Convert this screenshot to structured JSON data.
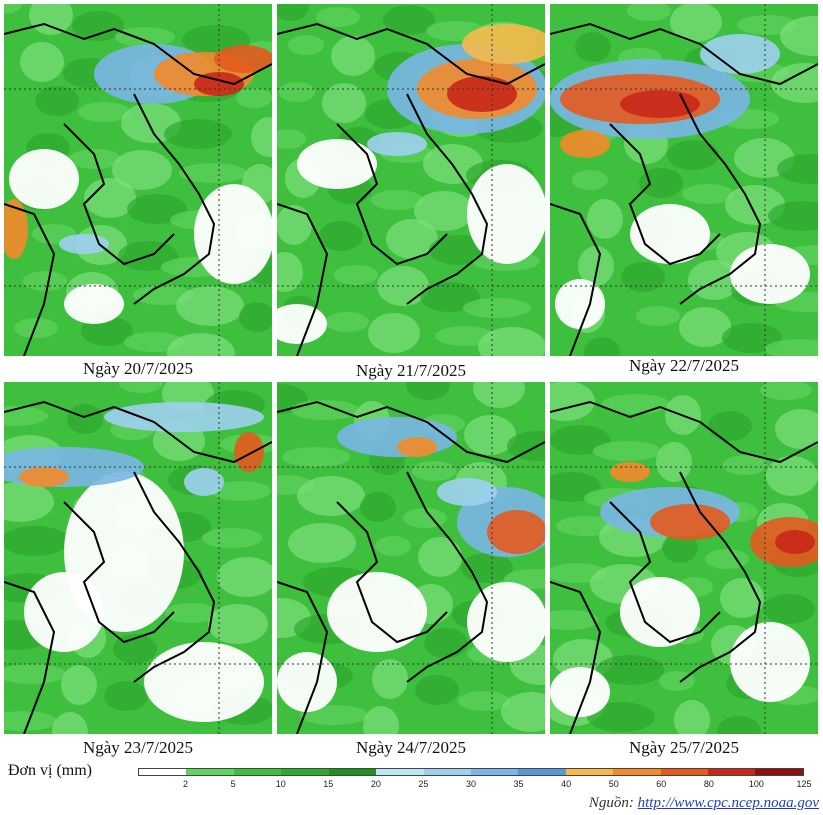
{
  "panels": [
    {
      "date_label": "Ngày 20/7/2025"
    },
    {
      "date_label": "Ngày 21/7/2025"
    },
    {
      "date_label": "Ngày 22/7/2025"
    },
    {
      "date_label": "Ngày 23/7/2025"
    },
    {
      "date_label": "Ngày 24/7/2025"
    },
    {
      "date_label": "Ngày 25/7/2025"
    }
  ],
  "legend": {
    "unit_label": "Đơn vị (mm)",
    "ticks": [
      "2",
      "5",
      "10",
      "15",
      "20",
      "25",
      "30",
      "35",
      "40",
      "50",
      "60",
      "80",
      "100",
      "125"
    ],
    "colors": [
      "#ffffff",
      "#5fd35f",
      "#3ebf3e",
      "#2ea82e",
      "#1f8f1f",
      "#bfe6f5",
      "#9fd0ef",
      "#7ab6e6",
      "#5a97d8",
      "#f4b94a",
      "#f28a2a",
      "#e45a1f",
      "#c8281a",
      "#8f1010"
    ]
  },
  "source": {
    "prefix": "Nguồn:",
    "link": "http://www.cpc.ncep.noaa.gov"
  }
}
